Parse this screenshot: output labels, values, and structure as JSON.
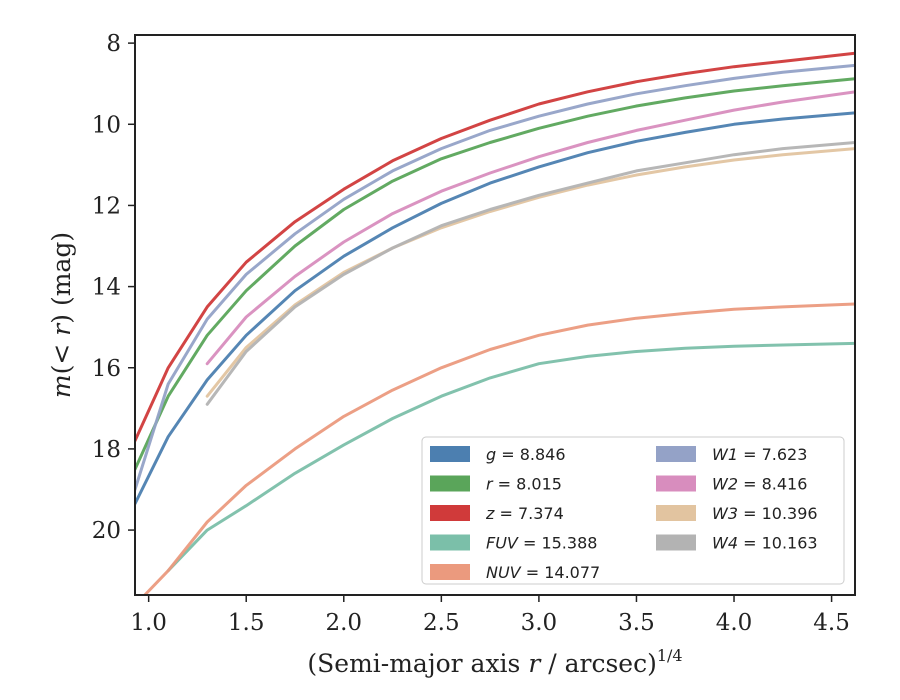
{
  "chart_data": {
    "type": "line",
    "xlabel": "(Semi-major axis r / arcsec)",
    "xlabel_parts": {
      "prefix": "(Semi-major axis ",
      "var": "r",
      "suffix": " / arcsec)",
      "exponent": "1/4"
    },
    "ylabel_parts": {
      "m": "m",
      "open": "(< ",
      "r": "r",
      "close": ") (mag)"
    },
    "xlim": [
      0.93,
      4.62
    ],
    "ylim": [
      21.6,
      7.8
    ],
    "y_inverted": true,
    "xticks": [
      1.0,
      1.5,
      2.0,
      2.5,
      3.0,
      3.5,
      4.0,
      4.5
    ],
    "xtick_labels": [
      "1.0",
      "1.5",
      "2.0",
      "2.5",
      "3.0",
      "3.5",
      "4.0",
      "4.5"
    ],
    "yticks": [
      8,
      10,
      12,
      14,
      16,
      18,
      20
    ],
    "ytick_labels": [
      "8",
      "10",
      "12",
      "14",
      "16",
      "18",
      "20"
    ],
    "grid": false,
    "legend_position": "lower-right",
    "series": [
      {
        "name": "g",
        "value": "8.846",
        "color": "#4c7fb0",
        "x": [
          0.93,
          1.1,
          1.3,
          1.5,
          1.75,
          2.0,
          2.25,
          2.5,
          2.75,
          3.0,
          3.25,
          3.5,
          3.75,
          4.0,
          4.25,
          4.62
        ],
        "y": [
          19.35,
          17.7,
          16.3,
          15.2,
          14.1,
          13.25,
          12.55,
          11.95,
          11.45,
          11.05,
          10.7,
          10.42,
          10.2,
          10.0,
          9.87,
          9.72
        ]
      },
      {
        "name": "r",
        "value": "8.015",
        "color": "#5aa55a",
        "x": [
          0.93,
          1.1,
          1.3,
          1.5,
          1.75,
          2.0,
          2.25,
          2.5,
          2.75,
          3.0,
          3.25,
          3.5,
          3.75,
          4.0,
          4.25,
          4.62
        ],
        "y": [
          18.5,
          16.7,
          15.2,
          14.1,
          13.0,
          12.1,
          11.4,
          10.85,
          10.45,
          10.1,
          9.8,
          9.55,
          9.35,
          9.18,
          9.05,
          8.88
        ]
      },
      {
        "name": "z",
        "value": "7.374",
        "color": "#d03a3a",
        "x": [
          0.93,
          1.1,
          1.3,
          1.5,
          1.75,
          2.0,
          2.25,
          2.5,
          2.75,
          3.0,
          3.25,
          3.5,
          3.75,
          4.0,
          4.25,
          4.62
        ],
        "y": [
          17.8,
          16.0,
          14.5,
          13.4,
          12.4,
          11.6,
          10.9,
          10.35,
          9.9,
          9.5,
          9.2,
          8.95,
          8.75,
          8.58,
          8.45,
          8.25
        ]
      },
      {
        "name": "FUV",
        "value": "15.388",
        "color": "#7bbfa9",
        "x": [
          1.1,
          1.3,
          1.5,
          1.75,
          2.0,
          2.25,
          2.5,
          2.75,
          3.0,
          3.25,
          3.5,
          3.75,
          4.0,
          4.25,
          4.62
        ],
        "y": [
          21.0,
          20.0,
          19.4,
          18.6,
          17.9,
          17.25,
          16.7,
          16.25,
          15.9,
          15.72,
          15.6,
          15.52,
          15.47,
          15.44,
          15.4
        ]
      },
      {
        "name": "NUV",
        "value": "14.077",
        "color": "#eb9a7e",
        "x": [
          0.98,
          1.1,
          1.3,
          1.5,
          1.75,
          2.0,
          2.25,
          2.5,
          2.75,
          3.0,
          3.25,
          3.5,
          3.75,
          4.0,
          4.25,
          4.62
        ],
        "y": [
          21.6,
          21.0,
          19.8,
          18.9,
          18.0,
          17.2,
          16.55,
          16.0,
          15.55,
          15.2,
          14.95,
          14.78,
          14.66,
          14.56,
          14.5,
          14.43
        ]
      },
      {
        "name": "W1",
        "value": "7.623",
        "color": "#94a2c7",
        "x": [
          0.93,
          1.1,
          1.3,
          1.5,
          1.75,
          2.0,
          2.25,
          2.5,
          2.75,
          3.0,
          3.25,
          3.5,
          3.75,
          4.0,
          4.25,
          4.62
        ],
        "y": [
          19.0,
          16.4,
          14.8,
          13.7,
          12.7,
          11.85,
          11.15,
          10.6,
          10.15,
          9.8,
          9.5,
          9.25,
          9.05,
          8.87,
          8.72,
          8.55
        ]
      },
      {
        "name": "W2",
        "value": "8.416",
        "color": "#d88dbe",
        "x": [
          1.3,
          1.5,
          1.75,
          2.0,
          2.25,
          2.5,
          2.75,
          3.0,
          3.25,
          3.5,
          3.75,
          4.0,
          4.25,
          4.62
        ],
        "y": [
          15.9,
          14.75,
          13.75,
          12.9,
          12.2,
          11.65,
          11.2,
          10.8,
          10.45,
          10.15,
          9.9,
          9.65,
          9.45,
          9.2
        ]
      },
      {
        "name": "W3",
        "value": "10.396",
        "color": "#e2c4a0",
        "x": [
          1.3,
          1.5,
          1.75,
          2.0,
          2.25,
          2.5,
          2.75,
          3.0,
          3.25,
          3.5,
          3.75,
          4.0,
          4.25,
          4.62
        ],
        "y": [
          16.7,
          15.5,
          14.45,
          13.65,
          13.05,
          12.55,
          12.15,
          11.8,
          11.5,
          11.25,
          11.05,
          10.88,
          10.75,
          10.6
        ]
      },
      {
        "name": "W4",
        "value": "10.163",
        "color": "#b3b3b3",
        "x": [
          1.3,
          1.5,
          1.75,
          2.0,
          2.25,
          2.5,
          2.75,
          3.0,
          3.25,
          3.5,
          3.75,
          4.0,
          4.25,
          4.62
        ],
        "y": [
          16.9,
          15.6,
          14.5,
          13.7,
          13.05,
          12.5,
          12.1,
          11.75,
          11.45,
          11.15,
          10.95,
          10.75,
          10.6,
          10.45
        ]
      }
    ]
  }
}
